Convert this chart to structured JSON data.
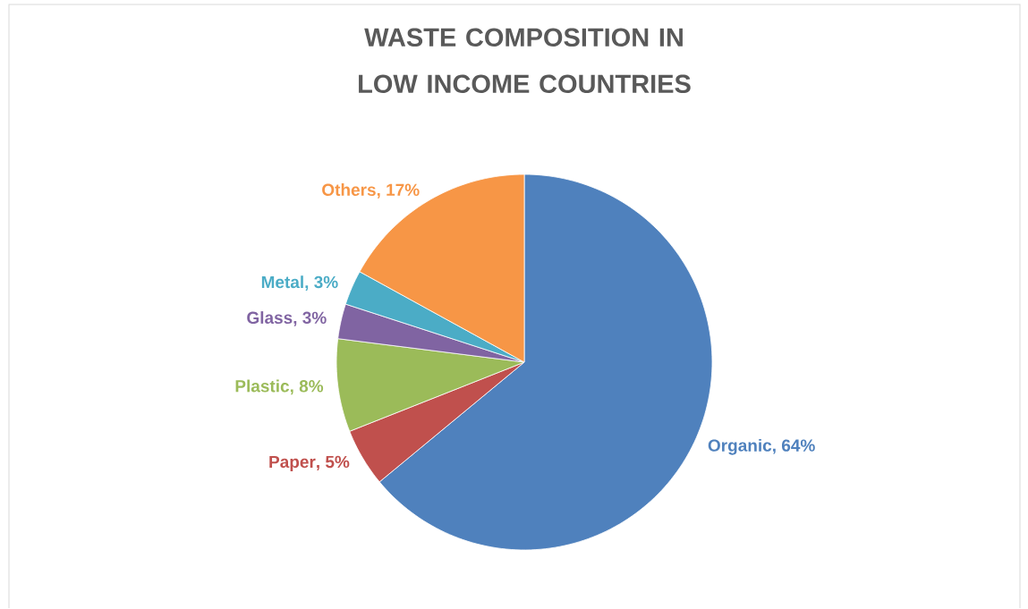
{
  "chart_data": {
    "type": "pie",
    "title": "WASTE COMPOSITION IN LOW INCOME COUNTRIES",
    "categories": [
      "Organic",
      "Paper",
      "Plastic",
      "Glass",
      "Metal",
      "Others"
    ],
    "values": [
      64,
      5,
      8,
      3,
      3,
      17
    ],
    "colors": [
      "#4f81bd",
      "#c0504d",
      "#9bbb59",
      "#8064a2",
      "#4bacc6",
      "#f79646"
    ],
    "value_labels": [
      ", 64%",
      ", 5%",
      ", 8%",
      ", 3%",
      ", 3%",
      ", 17%"
    ]
  }
}
